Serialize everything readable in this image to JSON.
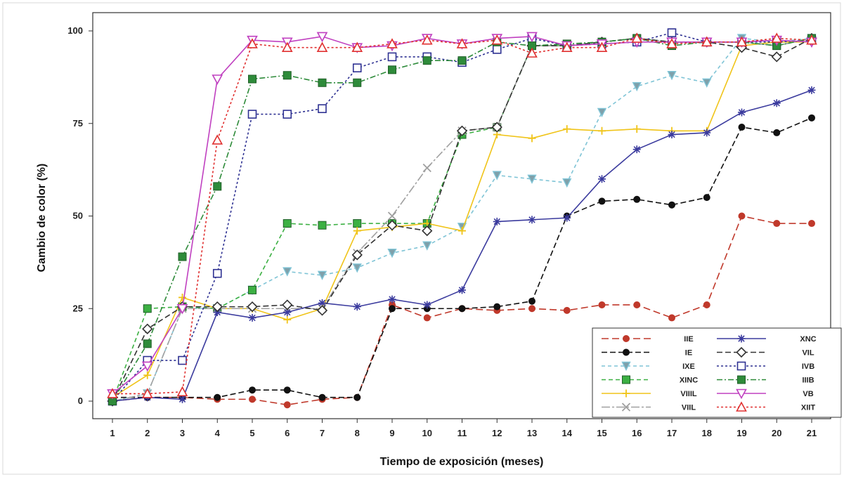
{
  "chart_data": {
    "type": "line",
    "xlabel": "Tiempo de exposición (meses)",
    "ylabel": "Cambio de color (%)",
    "x": [
      1,
      2,
      3,
      4,
      5,
      6,
      7,
      8,
      9,
      10,
      11,
      12,
      13,
      14,
      15,
      16,
      17,
      18,
      19,
      20,
      21
    ],
    "xlim": [
      1,
      21
    ],
    "ylim": [
      0,
      100
    ],
    "yticks": [
      0,
      25,
      50,
      75,
      100
    ],
    "grid": false,
    "legend_position": "bottom-right",
    "series": [
      {
        "name": "IIE",
        "color": "#c0392b",
        "dash": "10,5",
        "marker": "circle-filled",
        "values": [
          0,
          1,
          1,
          0.5,
          0.5,
          -1,
          0.5,
          1,
          26,
          22.5,
          25,
          24.5,
          25,
          24.5,
          26,
          26,
          22.5,
          26,
          50,
          48,
          48
        ]
      },
      {
        "name": "IE",
        "color": "#111111",
        "dash": "8,4",
        "marker": "circle-filled",
        "values": [
          1,
          1,
          1,
          1,
          3,
          3,
          1,
          1,
          25,
          25,
          25,
          25.5,
          27,
          50,
          54,
          54.5,
          53,
          55,
          74,
          72.5,
          76.5
        ]
      },
      {
        "name": "IXE",
        "color": "#7fc4d6",
        "dash": "5,4",
        "marker": "triangle-down",
        "values": [
          0,
          2,
          25,
          25,
          30,
          35,
          34,
          36,
          40,
          42,
          47,
          61,
          60,
          59,
          78,
          85,
          88,
          86,
          98,
          97,
          98
        ]
      },
      {
        "name": "XINC",
        "color": "#3cb043",
        "dash": "6,4",
        "marker": "square-filled",
        "values": [
          0,
          25,
          25.5,
          25,
          30,
          48,
          47.5,
          48,
          48,
          48,
          72,
          74,
          96,
          96,
          97,
          98,
          97,
          97,
          97,
          96,
          98
        ]
      },
      {
        "name": "VIIIL",
        "color": "#f0c419",
        "dash": "",
        "marker": "plus",
        "values": [
          1,
          7,
          28,
          25,
          25,
          22,
          25,
          46,
          47,
          48,
          46,
          72,
          71,
          73.5,
          73,
          73.5,
          73,
          73,
          96,
          97,
          97
        ]
      },
      {
        "name": "VIIL",
        "color": "#a0a0a0",
        "dash": "12,3,3,3",
        "marker": "cross",
        "values": [
          0,
          2,
          25,
          25,
          25,
          25,
          25,
          40,
          50,
          63,
          73,
          74,
          96,
          96,
          97,
          98,
          97,
          97,
          97,
          96,
          98
        ]
      },
      {
        "name": "XNC",
        "color": "#3b3b9e",
        "dash": "",
        "marker": "asterisk",
        "values": [
          0,
          1,
          0.5,
          24,
          22.5,
          24,
          26.5,
          25.5,
          27.5,
          26,
          30,
          48.5,
          49,
          49.5,
          60,
          68,
          72,
          72.5,
          78,
          80.5,
          84
        ]
      },
      {
        "name": "VIL",
        "color": "#333333",
        "dash": "8,4",
        "marker": "diamond-open",
        "values": [
          0,
          19.5,
          25.5,
          25.5,
          25.5,
          26,
          24.5,
          39.5,
          47.5,
          46,
          73,
          74,
          96,
          96,
          97,
          98,
          97,
          97,
          95.5,
          93,
          98
        ]
      },
      {
        "name": "IVB",
        "color": "#2e3192",
        "dash": "3,3",
        "marker": "square-open",
        "values": [
          0,
          11,
          11,
          34.5,
          77.5,
          77.5,
          79,
          90,
          93,
          93,
          91.5,
          95,
          98,
          96,
          96.5,
          97,
          99.5,
          97,
          97,
          97,
          97.5
        ]
      },
      {
        "name": "IIIB",
        "color": "#2e8b3a",
        "dash": "8,3,2,3",
        "marker": "square-filled",
        "values": [
          0,
          15.5,
          39,
          58,
          87,
          88,
          86,
          86,
          89.5,
          92,
          92,
          97,
          96,
          96.5,
          97,
          98,
          96,
          97,
          97,
          96,
          98
        ]
      },
      {
        "name": "VB",
        "color": "#c040c0",
        "dash": "",
        "marker": "triangle-down-open",
        "values": [
          2,
          9.5,
          25,
          87,
          97.5,
          97,
          98.5,
          95.5,
          96,
          98,
          96.5,
          98,
          98.5,
          96,
          96.5,
          97,
          97,
          97,
          97,
          97.5,
          97
        ]
      },
      {
        "name": "XIIT",
        "color": "#e03030",
        "dash": "3,3",
        "marker": "triangle-up-open",
        "values": [
          2,
          2,
          2.5,
          70.5,
          96.5,
          95.5,
          95.5,
          95.5,
          96.5,
          97.5,
          96.5,
          97.5,
          94,
          95.5,
          95.5,
          98,
          96.5,
          97,
          97,
          98,
          97.5
        ]
      }
    ],
    "legend": {
      "left_column": [
        "IIE",
        "IE",
        "IXE",
        "XINC",
        "VIIIL",
        "VIIL"
      ],
      "right_column": [
        "XNC",
        "VIL",
        "IVB",
        "IIIB",
        "VB",
        "XIIT"
      ]
    }
  }
}
